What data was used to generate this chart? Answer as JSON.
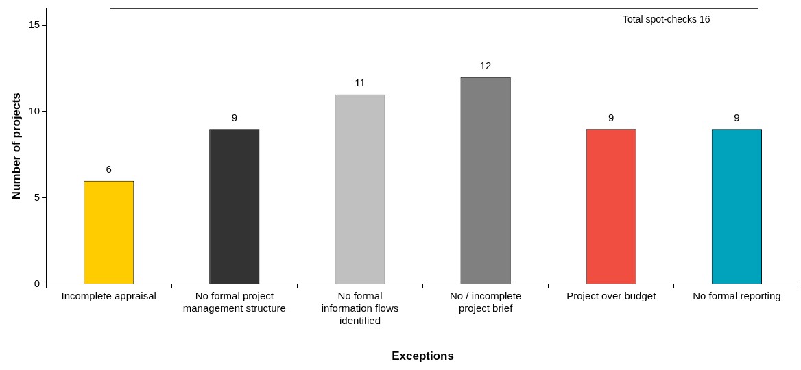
{
  "chart_data": {
    "type": "bar",
    "xlabel": "Exceptions",
    "ylabel": "Number of projects",
    "categories": [
      "Incomplete appraisal",
      "No formal project management structure",
      "No formal information flows identified",
      "No / incomplete project brief",
      "Project over budget",
      "No formal reporting"
    ],
    "values": [
      6,
      9,
      11,
      12,
      9,
      9
    ],
    "colors": [
      "#ffcc00",
      "#333333",
      "#c0c0c0",
      "#808080",
      "#f04e40",
      "#00a3bb"
    ],
    "ylim": [
      0,
      16
    ],
    "yticks": [
      0,
      5,
      10,
      15
    ],
    "grid": false,
    "legend": false,
    "data_labels": true,
    "ref_lines": [
      {
        "axis": "y",
        "value": 16,
        "label": "Total spot-checks 16",
        "color": "#000000"
      }
    ]
  }
}
